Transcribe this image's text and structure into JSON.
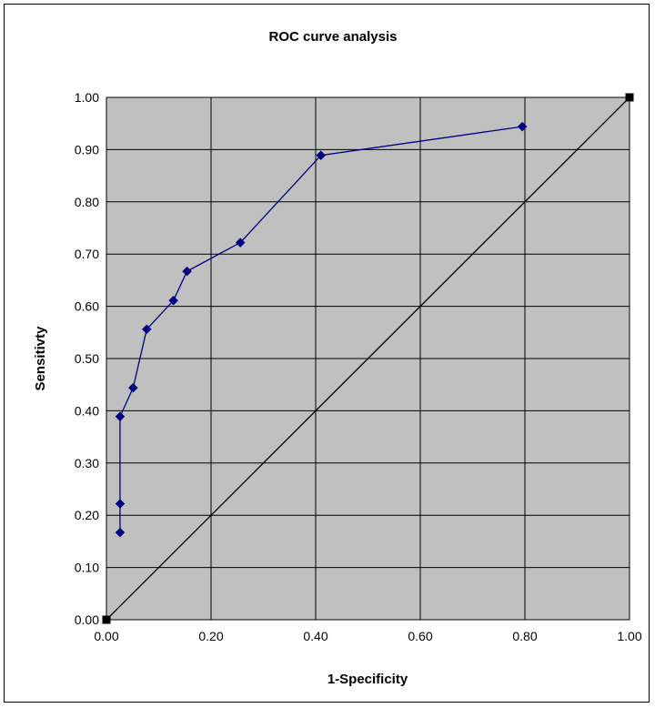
{
  "chart_data": {
    "type": "line",
    "title": "ROC curve analysis",
    "xlabel": "1-Specificity",
    "ylabel": "Sensitivty",
    "xlim": [
      0,
      1
    ],
    "ylim": [
      0,
      1
    ],
    "x_ticks": [
      "0.00",
      "0.20",
      "0.40",
      "0.60",
      "0.80",
      "1.00"
    ],
    "y_ticks": [
      "0.00",
      "0.10",
      "0.20",
      "0.30",
      "0.40",
      "0.50",
      "0.60",
      "0.70",
      "0.80",
      "0.90",
      "1.00"
    ],
    "grid": true,
    "plot_background": "#c0c0c0",
    "series": [
      {
        "color": "#000080",
        "marker": "diamond",
        "points": [
          {
            "x": 0.026,
            "y": 0.167
          },
          {
            "x": 0.026,
            "y": 0.222
          },
          {
            "x": 0.026,
            "y": 0.389
          },
          {
            "x": 0.051,
            "y": 0.444
          },
          {
            "x": 0.077,
            "y": 0.556
          },
          {
            "x": 0.128,
            "y": 0.611
          },
          {
            "x": 0.154,
            "y": 0.667
          },
          {
            "x": 0.256,
            "y": 0.722
          },
          {
            "x": 0.41,
            "y": 0.889
          },
          {
            "x": 0.795,
            "y": 0.944
          }
        ]
      },
      {
        "color": "#000000",
        "marker": "square",
        "points": [
          {
            "x": 0.0,
            "y": 0.0
          },
          {
            "x": 1.0,
            "y": 1.0
          }
        ]
      }
    ]
  }
}
